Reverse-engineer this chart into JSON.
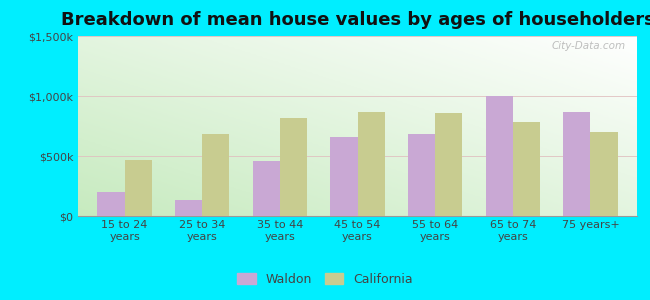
{
  "title": "Breakdown of mean house values by ages of householders",
  "categories": [
    "15 to 24\nyears",
    "25 to 34\nyears",
    "35 to 44\nyears",
    "45 to 54\nyears",
    "55 to 64\nyears",
    "65 to 74\nyears",
    "75 years+"
  ],
  "waldon": [
    200000,
    130000,
    460000,
    660000,
    680000,
    1000000,
    870000
  ],
  "california": [
    470000,
    680000,
    820000,
    870000,
    860000,
    780000,
    700000
  ],
  "waldon_color": "#c9a8d4",
  "california_color": "#c8cc90",
  "bg_outer": "#00eeff",
  "ylim": [
    0,
    1500000
  ],
  "yticks": [
    0,
    500000,
    1000000,
    1500000
  ],
  "ytick_labels": [
    "$0",
    "$500k",
    "$1,000k",
    "$1,500k"
  ],
  "legend_waldon": "Waldon",
  "legend_california": "California",
  "title_fontsize": 13,
  "tick_fontsize": 8,
  "legend_fontsize": 9,
  "bar_width": 0.35,
  "watermark": "City-Data.com"
}
